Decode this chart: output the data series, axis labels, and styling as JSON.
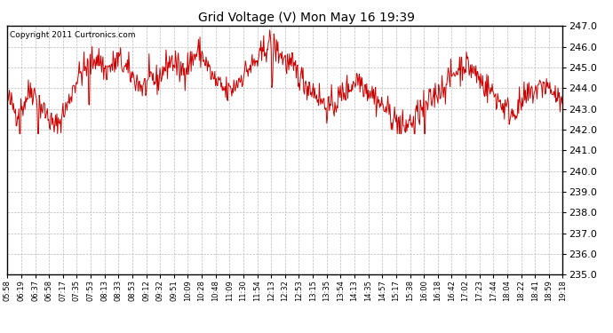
{
  "title": "Grid Voltage (V) Mon May 16 19:39",
  "copyright": "Copyright 2011 Curtronics.com",
  "line_color": "#cc0000",
  "background_color": "#ffffff",
  "grid_color": "#bbbbbb",
  "ylim": [
    235.0,
    247.0
  ],
  "yticks": [
    235.0,
    236.0,
    237.0,
    238.0,
    239.0,
    240.0,
    241.0,
    242.0,
    243.0,
    244.0,
    245.0,
    246.0,
    247.0
  ],
  "xtick_labels": [
    "05:58",
    "06:19",
    "06:37",
    "06:58",
    "07:17",
    "07:35",
    "07:53",
    "08:13",
    "08:33",
    "08:53",
    "09:12",
    "09:32",
    "09:51",
    "10:09",
    "10:28",
    "10:48",
    "11:09",
    "11:30",
    "11:54",
    "12:13",
    "12:32",
    "12:53",
    "13:15",
    "13:35",
    "13:54",
    "14:13",
    "14:35",
    "14:57",
    "15:17",
    "15:38",
    "16:00",
    "16:18",
    "16:42",
    "17:02",
    "17:23",
    "17:44",
    "18:04",
    "18:22",
    "18:41",
    "18:59",
    "19:18"
  ],
  "seed": 42,
  "num_points": 820,
  "voltage_profile": [
    243.5,
    243.2,
    242.8,
    243.0,
    243.5,
    244.0,
    243.7,
    243.2,
    242.9,
    242.5,
    242.1,
    242.3,
    242.8,
    243.2,
    244.0,
    244.5,
    244.8,
    245.0,
    245.2,
    245.5,
    245.3,
    244.8,
    245.0,
    245.2,
    245.4,
    245.0,
    244.8,
    244.5,
    244.3,
    244.0,
    244.2,
    244.5,
    244.3,
    244.7,
    245.1,
    245.3,
    245.2,
    244.8,
    245.0,
    245.2,
    245.5,
    245.8,
    245.5,
    245.0,
    244.5,
    244.2,
    244.0,
    243.8,
    243.9,
    244.2,
    244.5,
    244.8,
    245.0,
    245.2,
    245.4,
    245.8,
    246.2,
    246.0,
    245.8,
    245.5,
    245.2,
    245.0,
    244.8,
    244.5,
    244.2,
    244.0,
    243.8,
    243.5,
    243.2,
    243.0,
    243.2,
    243.5,
    243.8,
    244.0,
    244.2,
    244.5,
    244.3,
    244.0,
    243.8,
    243.5,
    243.2,
    243.0,
    242.8,
    242.5,
    242.3,
    242.1,
    242.3,
    242.5,
    242.8,
    243.0,
    243.2,
    243.5,
    243.8,
    244.0,
    244.2,
    244.5,
    244.8,
    245.0,
    245.2,
    245.0,
    244.8,
    244.5,
    244.2,
    244.0,
    243.8,
    243.5,
    243.2,
    243.0,
    242.8,
    243.0,
    243.2,
    243.5,
    243.7,
    243.9,
    244.0,
    244.2,
    244.0,
    243.8,
    243.5,
    243.2
  ],
  "title_fontsize": 10,
  "ytick_fontsize": 8,
  "xtick_fontsize": 6,
  "copyright_fontsize": 6.5,
  "linewidth": 0.7
}
